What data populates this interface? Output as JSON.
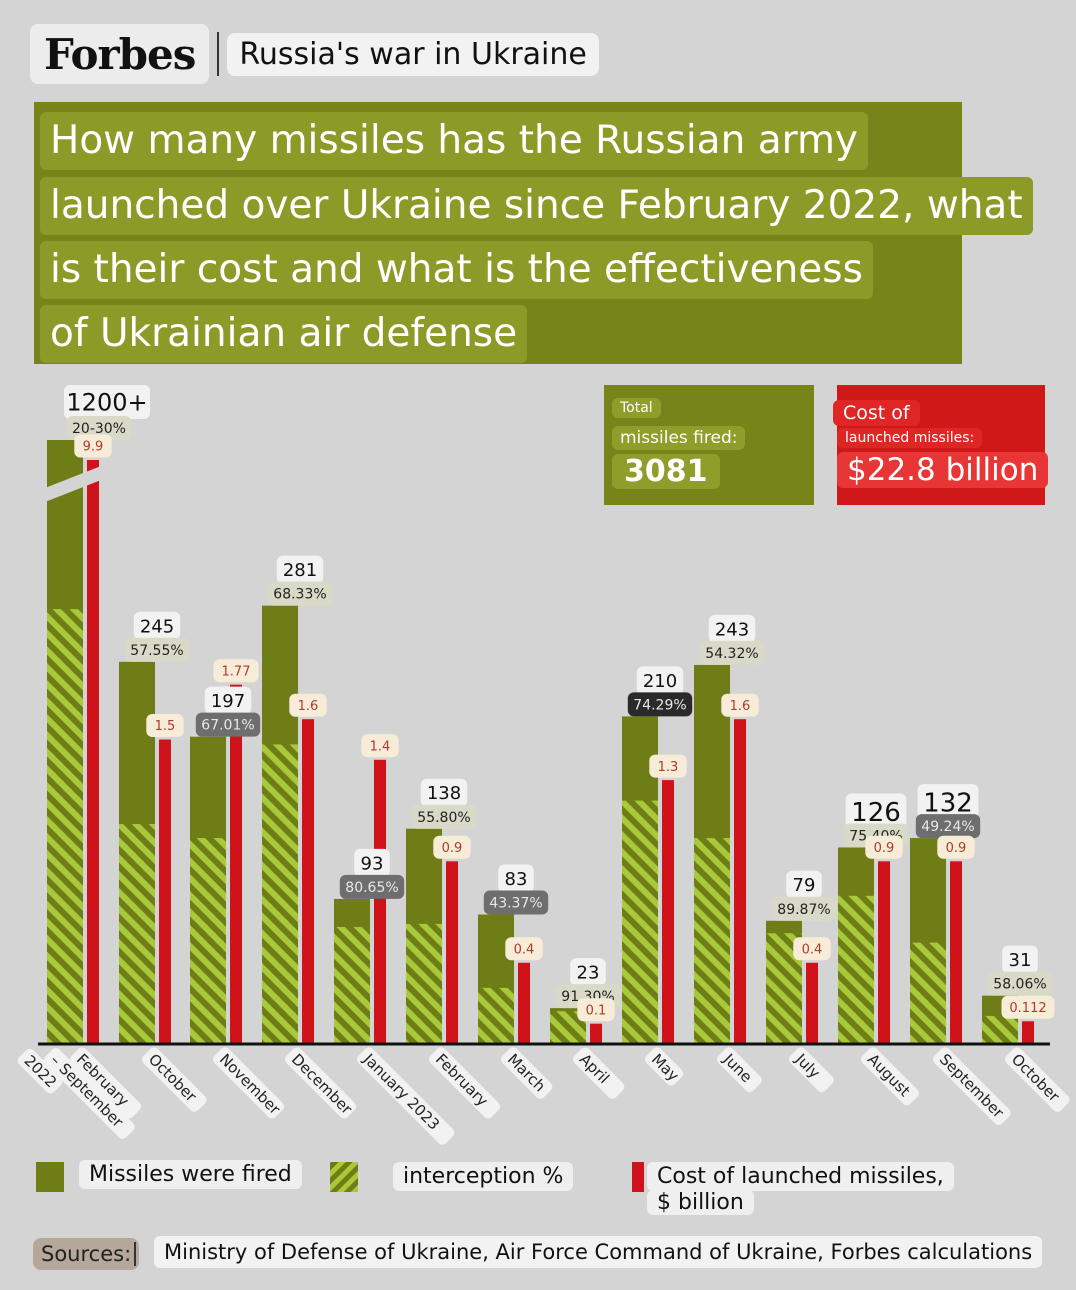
{
  "header": {
    "logo": "Forbes",
    "section": "Russia's war in Ukraine"
  },
  "title_lines": [
    "How many missiles has the Russian army",
    "launched over Ukraine since February 2022, what",
    "is their cost and what is the effectiveness",
    "of Ukrainian air defense"
  ],
  "totals": {
    "fired_label_1": "Total",
    "fired_label_2": "missiles fired:",
    "fired_value": "3081",
    "cost_label_1": "Cost of",
    "cost_label_2": "launched missiles:",
    "cost_value": "$22.8 billion"
  },
  "colors": {
    "missiles": "#6f7d17",
    "interception": "#9fc233",
    "cost": "#d0121b",
    "title_bg": "#76841a"
  },
  "chart_data": {
    "type": "bar",
    "categories": [
      "February\n– September\n2022",
      "October",
      "November",
      "December",
      "January 2023",
      "February",
      "March",
      "April",
      "May",
      "June",
      "July",
      "August",
      "September",
      "October"
    ],
    "series": [
      {
        "name": "Missiles were fired",
        "labels": [
          "1200+",
          "245",
          "197",
          "281",
          "93",
          "138",
          "83",
          "23",
          "210",
          "243",
          "79",
          "126",
          "132",
          "31"
        ],
        "values": [
          1200,
          245,
          197,
          281,
          93,
          138,
          83,
          23,
          210,
          243,
          79,
          126,
          132,
          31
        ]
      },
      {
        "name": "interception %",
        "labels": [
          "20-30%",
          "57.55%",
          "67.01%",
          "68.33%",
          "80.65%",
          "55.80%",
          "43.37%",
          "91.30%",
          "74.29%",
          "54.32%",
          "89.87%",
          "75.40%",
          "49.24%",
          "58.06%"
        ],
        "values": [
          25,
          57.55,
          67.01,
          68.33,
          80.65,
          55.8,
          43.37,
          91.3,
          74.29,
          54.32,
          89.87,
          75.4,
          49.24,
          58.06
        ]
      },
      {
        "name": "Cost of launched missiles, $ billion",
        "labels": [
          "9.9",
          "1.5",
          "1.77",
          "1.6",
          "1.4",
          "0.9",
          "0.4",
          "0.1",
          "1.3",
          "1.6",
          "0.4",
          "0.9",
          "0.9",
          "0.112"
        ],
        "values": [
          9.9,
          1.5,
          1.77,
          1.6,
          1.4,
          0.9,
          0.4,
          0.1,
          1.3,
          1.6,
          0.4,
          0.9,
          0.9,
          0.112
        ]
      }
    ],
    "scale_break": "first category bars are broken (value exceeds axis)"
  },
  "legend": {
    "missiles": "Missiles were fired",
    "interception": "interception %",
    "cost_1": "Cost of launched missiles,",
    "cost_2": "$ billion"
  },
  "sources": {
    "label": "Sources:",
    "text": "Ministry of Defense of Ukraine, Air Force Command of Ukraine, Forbes calculations"
  }
}
